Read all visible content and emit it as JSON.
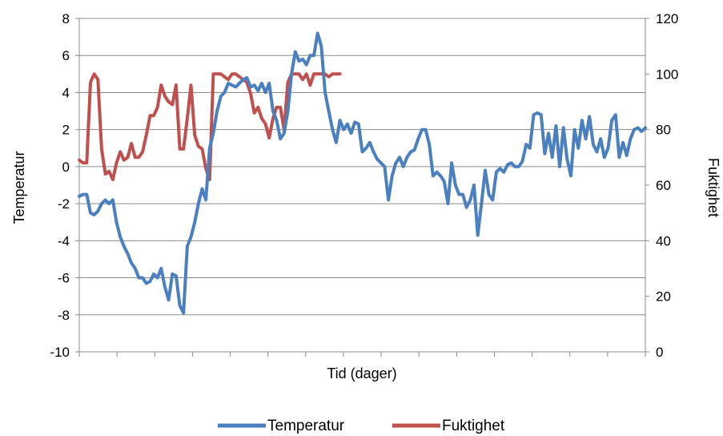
{
  "chart_data": {
    "type": "line",
    "xlabel": "Tid (dager)",
    "ylabel": "Temperatur",
    "y2label": "Fuktighet",
    "ylim": [
      -10,
      8
    ],
    "y2lim": [
      0,
      120
    ],
    "yticks": [
      -10,
      -8,
      -6,
      -4,
      -2,
      0,
      2,
      4,
      6,
      8
    ],
    "y2ticks": [
      0,
      20,
      40,
      60,
      80,
      100,
      120
    ],
    "grid": "horizontal",
    "legend": "bottom",
    "xlim": [
      0,
      152
    ],
    "series": [
      {
        "name": "Temperatur",
        "axis": "left",
        "color": "#4a7fc0",
        "x": [
          0,
          1,
          2,
          3,
          4,
          5,
          6,
          7,
          8,
          9,
          10,
          11,
          12,
          13,
          14,
          15,
          16,
          17,
          18,
          19,
          20,
          21,
          22,
          23,
          24,
          25,
          26,
          27,
          28,
          29,
          30,
          31,
          32,
          33,
          34,
          35,
          36,
          37,
          38,
          39,
          40,
          41,
          42,
          43,
          44,
          45,
          46,
          47,
          48,
          49,
          50,
          51,
          52,
          53,
          54,
          55,
          56,
          57,
          58,
          59,
          60,
          61,
          62,
          63,
          64,
          65,
          66,
          67,
          68,
          69,
          70,
          71,
          72,
          73,
          74,
          75,
          76,
          77,
          78,
          79,
          80,
          81,
          82,
          83,
          84,
          85,
          86,
          87,
          88,
          89,
          90,
          91,
          92,
          93,
          94,
          95,
          96,
          97,
          98,
          99,
          100,
          101,
          102,
          103,
          104,
          105,
          106,
          107,
          108,
          109,
          110,
          111,
          112,
          113,
          114,
          115,
          116,
          117,
          118,
          119,
          120,
          121,
          122,
          123,
          124,
          125,
          126,
          127,
          128,
          129,
          130,
          131,
          132,
          133,
          134,
          135,
          136,
          137,
          138,
          139,
          140,
          141,
          142,
          143,
          144,
          145,
          146,
          147,
          148,
          149,
          150,
          151,
          152
        ],
        "values": [
          -1.6,
          -1.5,
          -1.5,
          -2.5,
          -2.6,
          -2.4,
          -2.0,
          -1.8,
          -2.0,
          -1.8,
          -3.0,
          -3.8,
          -4.3,
          -4.7,
          -5.2,
          -5.5,
          -6.0,
          -6.0,
          -6.3,
          -6.2,
          -5.8,
          -6.0,
          -5.5,
          -6.5,
          -7.2,
          -5.8,
          -5.9,
          -7.5,
          -7.9,
          -4.3,
          -3.8,
          -3.0,
          -2.0,
          -1.2,
          -1.8,
          1.0,
          1.8,
          3.0,
          3.8,
          4.0,
          4.5,
          4.4,
          4.3,
          4.5,
          4.7,
          4.8,
          4.3,
          4.4,
          4.1,
          4.5,
          4.0,
          4.5,
          3.0,
          2.5,
          1.5,
          1.8,
          3.0,
          5.0,
          6.2,
          5.7,
          5.8,
          5.5,
          6.0,
          6.0,
          7.2,
          6.5,
          4.0,
          3.0,
          2.0,
          1.3,
          2.5,
          2.0,
          2.3,
          1.8,
          2.4,
          2.3,
          0.8,
          1.0,
          1.3,
          0.8,
          0.4,
          0.2,
          0.0,
          -1.8,
          -0.5,
          0.2,
          0.5,
          0.0,
          0.5,
          0.8,
          0.9,
          1.5,
          2.0,
          2.0,
          1.2,
          -0.5,
          -0.3,
          -0.5,
          -0.8,
          -2.0,
          0.2,
          -1.0,
          -1.5,
          -1.5,
          -2.2,
          -1.8,
          -1.0,
          -3.7,
          -2.0,
          -0.2,
          -1.5,
          -1.8,
          -0.3,
          -0.1,
          -0.3,
          0.1,
          0.2,
          0.0,
          0.0,
          0.3,
          1.2,
          1.0,
          2.8,
          2.9,
          2.8,
          0.7,
          1.8,
          0.5,
          2.2,
          0.0,
          2.1,
          0.4,
          -0.5,
          2.0,
          1.0,
          2.5,
          1.5,
          2.7,
          1.2,
          0.8,
          1.5,
          0.5,
          1.0,
          2.5,
          2.8,
          0.5,
          1.3,
          0.6,
          1.5,
          2.0,
          2.1,
          1.9,
          2.1
        ]
      },
      {
        "name": "Fuktighet",
        "axis": "right",
        "color": "#c0504d",
        "x": [
          0,
          1,
          2,
          3,
          4,
          5,
          6,
          7,
          8,
          9,
          10,
          11,
          12,
          13,
          14,
          15,
          16,
          17,
          18,
          19,
          20,
          21,
          22,
          23,
          24,
          25,
          26,
          27,
          28,
          29,
          30,
          31,
          32,
          33,
          34,
          35,
          36,
          37,
          38,
          39,
          40,
          41,
          42,
          43,
          44,
          45,
          46,
          47,
          48,
          49,
          50,
          51,
          52,
          53,
          54,
          55,
          56,
          57,
          58,
          59,
          60,
          61,
          62,
          63,
          64,
          65,
          66,
          67,
          68,
          69,
          70
        ],
        "values": [
          69,
          68,
          68,
          97,
          100,
          98,
          73,
          64,
          65,
          62,
          68,
          72,
          69,
          70,
          75,
          70,
          70,
          72,
          78,
          85,
          85,
          88,
          96,
          92,
          90,
          89,
          96,
          73,
          73,
          84,
          96,
          78,
          74,
          73,
          66,
          62,
          100,
          100,
          100,
          99,
          98,
          100,
          100,
          99,
          98,
          97,
          93,
          86,
          88,
          84,
          82,
          77,
          84,
          88,
          88,
          80,
          97,
          100,
          100,
          100,
          98,
          100,
          96,
          100,
          100,
          100,
          100,
          99,
          100,
          100,
          100
        ]
      }
    ]
  }
}
